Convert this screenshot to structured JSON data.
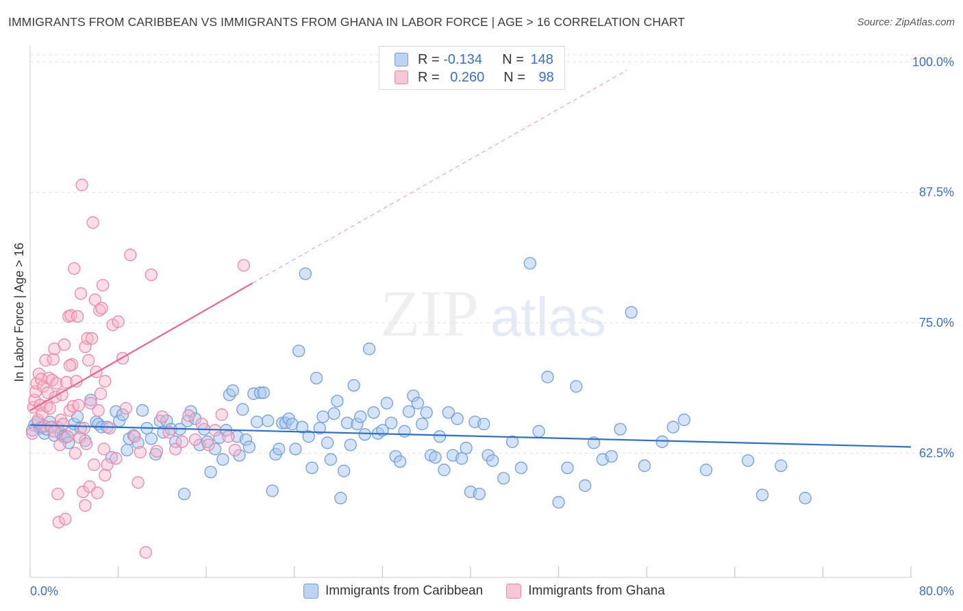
{
  "header": {
    "title": "IMMIGRANTS FROM CARIBBEAN VS IMMIGRANTS FROM GHANA IN LABOR FORCE | AGE > 16 CORRELATION CHART",
    "source": "Source: ZipAtlas.com"
  },
  "watermark": {
    "zip": "ZIP",
    "atlas": "atlas"
  },
  "legend": {
    "rows": [
      {
        "r_label": "R = ",
        "r_value": "-0.134",
        "n_label": "N = ",
        "n_value": "148"
      },
      {
        "r_label": "R = ",
        "r_value": "0.260",
        "n_label": "N = ",
        "n_value": "98"
      }
    ]
  },
  "colors": {
    "caribbean_fill": "#a9c8f0",
    "caribbean_stroke": "#6f9fdc",
    "caribbean_line": "#2a6fcf",
    "ghana_fill": "#f6b6c9",
    "ghana_stroke": "#ee87a6",
    "ghana_line": "#e8648f",
    "tick_label": "#3a6fc4",
    "grid": "#e3e3e3"
  },
  "chart_data": {
    "type": "scatter",
    "title": "IMMIGRANTS FROM CARIBBEAN VS IMMIGRANTS FROM GHANA IN LABOR FORCE | AGE > 16 CORRELATION CHART",
    "xlabel": "",
    "ylabel": "In Labor Force | Age > 16",
    "xlim": [
      0,
      80
    ],
    "ylim": [
      50.6,
      101.2
    ],
    "x_tick_labels": [
      "0.0%",
      "80.0%"
    ],
    "y_ticks": [
      62.5,
      75.0,
      87.5,
      100.0
    ],
    "y_tick_labels": [
      "62.5%",
      "75.0%",
      "87.5%",
      "100.0%"
    ],
    "grid": true,
    "legend_position": "top-center",
    "series": [
      {
        "name": "Immigrants from Caribbean",
        "r": -0.134,
        "n": 148,
        "trend": [
          [
            0,
            65.2
          ],
          [
            80,
            63.1
          ]
        ],
        "points": [
          [
            0.2,
            64.7
          ],
          [
            0.4,
            65.2
          ],
          [
            0.7,
            65.5
          ],
          [
            0.9,
            64.9
          ],
          [
            1.1,
            65.0
          ],
          [
            1.3,
            64.4
          ],
          [
            1.5,
            64.8
          ],
          [
            1.8,
            65.5
          ],
          [
            2.0,
            65.0
          ],
          [
            2.2,
            64.2
          ],
          [
            2.5,
            65.0
          ],
          [
            2.8,
            64.4
          ],
          [
            3.0,
            64.1
          ],
          [
            3.2,
            64.0
          ],
          [
            3.5,
            63.5
          ],
          [
            3.8,
            64.7
          ],
          [
            4.0,
            65.3
          ],
          [
            4.3,
            66.0
          ],
          [
            4.6,
            64.9
          ],
          [
            5.0,
            63.7
          ],
          [
            5.5,
            67.6
          ],
          [
            6.0,
            65.5
          ],
          [
            6.2,
            65.3
          ],
          [
            6.5,
            65.0
          ],
          [
            7.0,
            65.0
          ],
          [
            7.4,
            62.1
          ],
          [
            7.8,
            66.5
          ],
          [
            8.1,
            65.6
          ],
          [
            8.4,
            66.2
          ],
          [
            8.8,
            62.8
          ],
          [
            9.0,
            63.9
          ],
          [
            9.4,
            64.2
          ],
          [
            9.8,
            63.5
          ],
          [
            10.2,
            66.6
          ],
          [
            10.6,
            64.9
          ],
          [
            11.0,
            63.9
          ],
          [
            11.4,
            62.4
          ],
          [
            11.8,
            65.6
          ],
          [
            12.1,
            64.5
          ],
          [
            12.4,
            65.6
          ],
          [
            12.8,
            64.8
          ],
          [
            13.2,
            63.6
          ],
          [
            13.6,
            64.8
          ],
          [
            14.0,
            58.6
          ],
          [
            14.3,
            65.6
          ],
          [
            14.6,
            66.5
          ],
          [
            15.0,
            65.8
          ],
          [
            15.4,
            63.3
          ],
          [
            15.8,
            64.8
          ],
          [
            16.1,
            63.6
          ],
          [
            16.4,
            60.7
          ],
          [
            16.8,
            62.9
          ],
          [
            17.2,
            64.0
          ],
          [
            17.5,
            61.9
          ],
          [
            17.8,
            64.7
          ],
          [
            18.1,
            68.1
          ],
          [
            18.4,
            68.5
          ],
          [
            18.8,
            64.1
          ],
          [
            19.0,
            62.3
          ],
          [
            19.3,
            66.7
          ],
          [
            19.6,
            63.8
          ],
          [
            19.9,
            63.1
          ],
          [
            20.3,
            68.2
          ],
          [
            20.6,
            65.5
          ],
          [
            20.9,
            68.3
          ],
          [
            21.2,
            68.3
          ],
          [
            21.6,
            65.6
          ],
          [
            22.0,
            58.9
          ],
          [
            22.3,
            62.4
          ],
          [
            22.6,
            62.9
          ],
          [
            22.9,
            65.4
          ],
          [
            23.2,
            65.4
          ],
          [
            23.5,
            65.8
          ],
          [
            23.8,
            65.3
          ],
          [
            24.1,
            62.9
          ],
          [
            24.4,
            72.3
          ],
          [
            24.7,
            65.0
          ],
          [
            25.0,
            79.7
          ],
          [
            25.3,
            64.1
          ],
          [
            25.6,
            61.1
          ],
          [
            26.0,
            69.7
          ],
          [
            26.3,
            64.9
          ],
          [
            26.6,
            66.0
          ],
          [
            27.0,
            63.5
          ],
          [
            27.3,
            61.9
          ],
          [
            27.6,
            66.3
          ],
          [
            27.9,
            67.5
          ],
          [
            28.2,
            58.2
          ],
          [
            28.5,
            60.8
          ],
          [
            28.8,
            65.4
          ],
          [
            29.1,
            63.3
          ],
          [
            29.4,
            69.0
          ],
          [
            29.7,
            65.3
          ],
          [
            30.0,
            66.0
          ],
          [
            30.4,
            64.3
          ],
          [
            30.8,
            72.5
          ],
          [
            31.2,
            66.4
          ],
          [
            31.6,
            64.4
          ],
          [
            32.0,
            64.7
          ],
          [
            32.4,
            67.3
          ],
          [
            32.8,
            65.4
          ],
          [
            33.2,
            62.2
          ],
          [
            33.6,
            61.7
          ],
          [
            34.0,
            64.6
          ],
          [
            34.4,
            66.5
          ],
          [
            34.8,
            68.0
          ],
          [
            35.2,
            67.3
          ],
          [
            35.6,
            65.3
          ],
          [
            36.0,
            66.4
          ],
          [
            36.4,
            62.3
          ],
          [
            36.8,
            62.1
          ],
          [
            37.2,
            64.1
          ],
          [
            37.6,
            60.9
          ],
          [
            38.0,
            66.4
          ],
          [
            38.4,
            62.3
          ],
          [
            38.8,
            65.8
          ],
          [
            39.2,
            62.0
          ],
          [
            39.6,
            63.0
          ],
          [
            40.0,
            58.8
          ],
          [
            40.4,
            65.5
          ],
          [
            40.8,
            58.6
          ],
          [
            41.2,
            65.3
          ],
          [
            41.6,
            62.3
          ],
          [
            42.0,
            61.8
          ],
          [
            43.0,
            60.1
          ],
          [
            43.8,
            63.6
          ],
          [
            44.6,
            61.1
          ],
          [
            45.4,
            80.7
          ],
          [
            46.2,
            64.6
          ],
          [
            47.0,
            69.8
          ],
          [
            48.0,
            57.8
          ],
          [
            48.8,
            61.1
          ],
          [
            49.6,
            68.9
          ],
          [
            50.4,
            59.4
          ],
          [
            51.2,
            63.5
          ],
          [
            52.0,
            61.9
          ],
          [
            52.8,
            62.2
          ],
          [
            53.6,
            64.8
          ],
          [
            54.6,
            76.0
          ],
          [
            55.8,
            61.3
          ],
          [
            57.4,
            63.6
          ],
          [
            58.4,
            65.0
          ],
          [
            59.4,
            65.7
          ],
          [
            61.4,
            60.9
          ],
          [
            65.2,
            61.8
          ],
          [
            66.5,
            58.5
          ],
          [
            68.2,
            61.3
          ],
          [
            70.4,
            58.2
          ]
        ]
      },
      {
        "name": "Immigrants from Ghana",
        "r": 0.26,
        "n": 98,
        "trend": [
          [
            0,
            66.6
          ],
          [
            20.2,
            78.8
          ]
        ],
        "trend_extension": [
          [
            20.2,
            78.8
          ],
          [
            54.2,
            99.2
          ]
        ],
        "points": [
          [
            0.2,
            64.4
          ],
          [
            0.3,
            66.9
          ],
          [
            0.4,
            67.6
          ],
          [
            0.5,
            68.4
          ],
          [
            0.6,
            69.2
          ],
          [
            0.7,
            65.7
          ],
          [
            0.8,
            70.1
          ],
          [
            0.9,
            67.1
          ],
          [
            1.0,
            69.6
          ],
          [
            1.1,
            66.3
          ],
          [
            1.2,
            68.9
          ],
          [
            1.3,
            65.1
          ],
          [
            1.4,
            71.4
          ],
          [
            1.5,
            67.0
          ],
          [
            1.6,
            68.3
          ],
          [
            1.7,
            69.7
          ],
          [
            1.8,
            66.8
          ],
          [
            1.9,
            65.0
          ],
          [
            2.0,
            69.5
          ],
          [
            2.1,
            71.5
          ],
          [
            2.2,
            64.6
          ],
          [
            2.3,
            67.9
          ],
          [
            2.4,
            69.2
          ],
          [
            2.5,
            58.6
          ],
          [
            2.6,
            55.9
          ],
          [
            2.7,
            63.3
          ],
          [
            2.8,
            65.7
          ],
          [
            2.9,
            68.1
          ],
          [
            3.0,
            65.3
          ],
          [
            3.1,
            72.9
          ],
          [
            3.2,
            56.2
          ],
          [
            3.3,
            69.3
          ],
          [
            3.4,
            64.1
          ],
          [
            3.5,
            75.6
          ],
          [
            3.6,
            66.6
          ],
          [
            3.7,
            75.7
          ],
          [
            3.8,
            71.0
          ],
          [
            3.9,
            67.0
          ],
          [
            4.0,
            80.2
          ],
          [
            4.1,
            62.5
          ],
          [
            4.2,
            69.4
          ],
          [
            4.3,
            75.6
          ],
          [
            4.4,
            67.1
          ],
          [
            4.5,
            64.0
          ],
          [
            4.6,
            77.8
          ],
          [
            4.7,
            88.2
          ],
          [
            4.8,
            58.8
          ],
          [
            4.9,
            64.9
          ],
          [
            5.0,
            72.7
          ],
          [
            5.1,
            63.4
          ],
          [
            5.2,
            73.5
          ],
          [
            5.3,
            71.4
          ],
          [
            5.4,
            59.3
          ],
          [
            5.5,
            67.3
          ],
          [
            5.6,
            73.5
          ],
          [
            5.7,
            84.6
          ],
          [
            5.8,
            61.4
          ],
          [
            5.9,
            77.2
          ],
          [
            6.0,
            70.3
          ],
          [
            6.1,
            58.7
          ],
          [
            6.2,
            66.6
          ],
          [
            6.3,
            76.2
          ],
          [
            6.4,
            68.2
          ],
          [
            6.5,
            76.4
          ],
          [
            6.6,
            78.6
          ],
          [
            6.7,
            62.9
          ],
          [
            6.8,
            69.4
          ],
          [
            7.0,
            61.4
          ],
          [
            7.2,
            64.9
          ],
          [
            7.5,
            74.8
          ],
          [
            7.8,
            62.0
          ],
          [
            8.0,
            75.1
          ],
          [
            8.4,
            71.6
          ],
          [
            8.7,
            66.8
          ],
          [
            9.1,
            81.5
          ],
          [
            9.5,
            64.1
          ],
          [
            10.0,
            62.6
          ],
          [
            10.5,
            53.0
          ],
          [
            11.0,
            79.6
          ],
          [
            11.5,
            62.7
          ],
          [
            12.0,
            66.0
          ],
          [
            12.6,
            64.5
          ],
          [
            13.2,
            62.9
          ],
          [
            13.8,
            63.6
          ],
          [
            14.4,
            66.1
          ],
          [
            15.0,
            63.8
          ],
          [
            15.6,
            65.3
          ],
          [
            16.2,
            63.3
          ],
          [
            16.8,
            64.7
          ],
          [
            17.4,
            66.2
          ],
          [
            18.0,
            64.1
          ],
          [
            18.6,
            62.8
          ],
          [
            19.4,
            80.5
          ],
          [
            2.2,
            72.5
          ],
          [
            3.6,
            70.9
          ],
          [
            5.0,
            57.5
          ],
          [
            6.8,
            60.4
          ],
          [
            9.8,
            59.7
          ]
        ]
      }
    ]
  }
}
